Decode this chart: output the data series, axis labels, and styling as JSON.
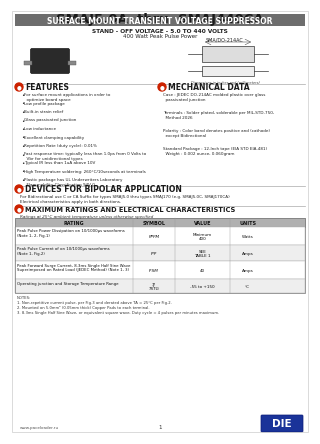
{
  "title": "SMAJ5.0A  thru  SMAJ440CA",
  "subtitle_bg": "#6d6d6d",
  "subtitle_text": "SURFACE MOUNT TRANSIENT VOLTAGE SUPPRESSOR",
  "subtitle_color": "#ffffff",
  "line1": "STAND - OFF VOLTAGE - 5.0 TO 440 VOLTS",
  "line2": "400 Watt Peak Pulse Power",
  "diag_label": "SMA/DO-214AC",
  "bg_color": "#ffffff",
  "features_title": "FEATURES",
  "features_items": [
    "For surface mount applications in order to\n  optimize board space",
    "Low profile package",
    "Built-in strain relief",
    "Glass passivated junction",
    "Low inductance",
    "Excellent clamping capability",
    "Repetition Rate (duty cycle): 0.01%",
    "Fast response time: typically less than 1.0ps from 0 Volts to\n  Vbr for unidirectional types",
    "Typical IR less than 1uA above 10V",
    "High Temperature soldering: 260°C/10seconds at terminals",
    "Plastic package has UL Underwriters Laboratory\n  Flammability Classification 94V-0"
  ],
  "mech_title": "MECHANICAL DATA",
  "mech_items": [
    "Case : JEDEC DO-214AC molded plastic over glass\n  passivated junction",
    "Terminals : Solder plated, solderable per MIL-STD-750,\n  Method 2026",
    "Polarity : Color band denotes positive and (cathode)\n  except Bidirectional",
    "Standard Package : 12-Inch tape (EIA STD EIA-481)\n  Weight : 0.002 ounce, 0.060gram"
  ],
  "bipolar_title": "DEVICES FOR BIPOLAR APPLICATION",
  "bipolar_text": "For Bidirectional use C or CA Suffix for types SMAJ5.0 thru types SMAJ170 (e.g. SMAJ5.0C, SMAJ170CA)\nElectrical characteristics apply in both directions.",
  "maxrat_title": "MAXIMUM RATINGS AND ELECTRICAL CHARACTERISTICS",
  "maxrat_subtitle": "Ratings at 25°C ambient temperature unless otherwise specified",
  "table_headers": [
    "RATING",
    "SYMBOL",
    "VALUE",
    "UNITS"
  ],
  "table_rows": [
    [
      "Peak Pulse Power Dissipation on 10/1000μs waveforms\n(Note 1, 2, Fig.1)",
      "PPPM",
      "Minimum\n400",
      "Watts"
    ],
    [
      "Peak Pulse Current of on 10/1000μs waveforms\n(Note 1, Fig.2)",
      "IPP",
      "SEE\nTABLE 1",
      "Amps"
    ],
    [
      "Peak Forward Surge Current, 8.3ms Single Half Sine Wave\nSuperimposed on Rated Load (JEDEC Method) (Note 1, 3)",
      "IFSM",
      "40",
      "Amps"
    ],
    [
      "Operating junction and Storage Temperature Range",
      "TJ\nTSTG",
      "-55 to +150",
      "°C"
    ]
  ],
  "notes_text": "NOTES:\n1. Non-repetitive current pulse, per Fig.3 and derated above TA = 25°C per Fig.2.\n2. Mounted on 5.0mm² (0.05mm thick) Copper Pads to each terminal.\n3. 8.3ms Single Half Sine Wave, or equivalent square wave, Duty cycle = 4 pulses per minutes maximum.",
  "footer_left": "www.paceloader.ru",
  "footer_center": "1",
  "table_header_bg": "#b0b0b0",
  "table_row_bg1": "#ffffff",
  "table_row_bg2": "#eeeeee"
}
